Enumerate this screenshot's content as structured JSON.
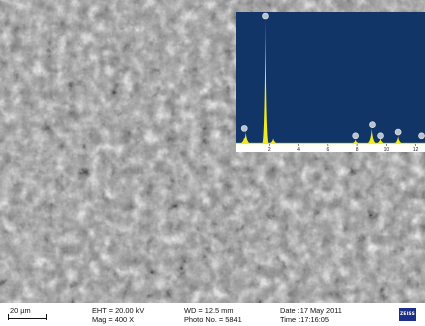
{
  "image": {
    "description_colors": {
      "grain_dark": "#3a3a3a",
      "grain_light": "#d8d8d8",
      "panel_bg": "#123568",
      "spectrum": "#f2ea20"
    }
  },
  "eds": {
    "x_ticks": [
      "2",
      "4",
      "6",
      "8",
      "10",
      "12"
    ],
    "x_range": [
      0,
      12.5
    ],
    "peaks": [
      {
        "energy": 1.74,
        "height": 1.0
      },
      {
        "energy": 0.39,
        "height": 0.09
      },
      {
        "energy": 0.28,
        "height": 0.05
      },
      {
        "energy": 2.26,
        "height": 0.04
      },
      {
        "energy": 7.9,
        "height": 0.03
      },
      {
        "energy": 9.0,
        "height": 0.12
      },
      {
        "energy": 9.6,
        "height": 0.04
      },
      {
        "energy": 10.8,
        "height": 0.06
      }
    ],
    "markers": [
      {
        "energy": 1.74,
        "height": 1.0
      },
      {
        "energy": 0.29,
        "height": 0.09
      },
      {
        "energy": 7.9,
        "height": 0.03
      },
      {
        "energy": 9.05,
        "height": 0.12
      },
      {
        "energy": 9.6,
        "height": 0.03
      },
      {
        "energy": 10.8,
        "height": 0.06
      },
      {
        "energy": 12.4,
        "height": 0.03
      }
    ]
  },
  "info": {
    "scale_label": "20 µm",
    "eht": "EHT = 20.00 kV",
    "mag": "Mag =    400 X",
    "wd": "WD = 12.5 mm",
    "photo": "Photo No. = 5841",
    "date": "Date :17 May 2011",
    "time": "Time :17:16:05",
    "logo": "ZEISS"
  }
}
